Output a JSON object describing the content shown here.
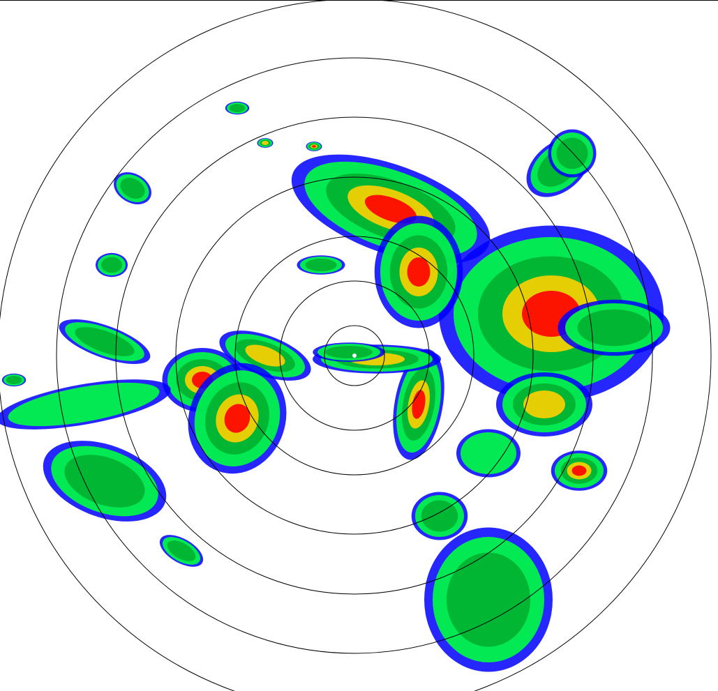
{
  "map": {
    "type": "weather-radar-reflectivity-ppi",
    "range_rings": 7,
    "ring_color": "#000000",
    "background": "#ffffff",
    "palette": {
      "weak_light": "#00d0ff",
      "weak": "#0000ff",
      "light": "#00ff40",
      "moderate": "#00b030",
      "moderate_high": "#c8e000",
      "heavy": "#ffd000",
      "very_heavy": "#ff8000",
      "intense": "#ff0000"
    }
  }
}
